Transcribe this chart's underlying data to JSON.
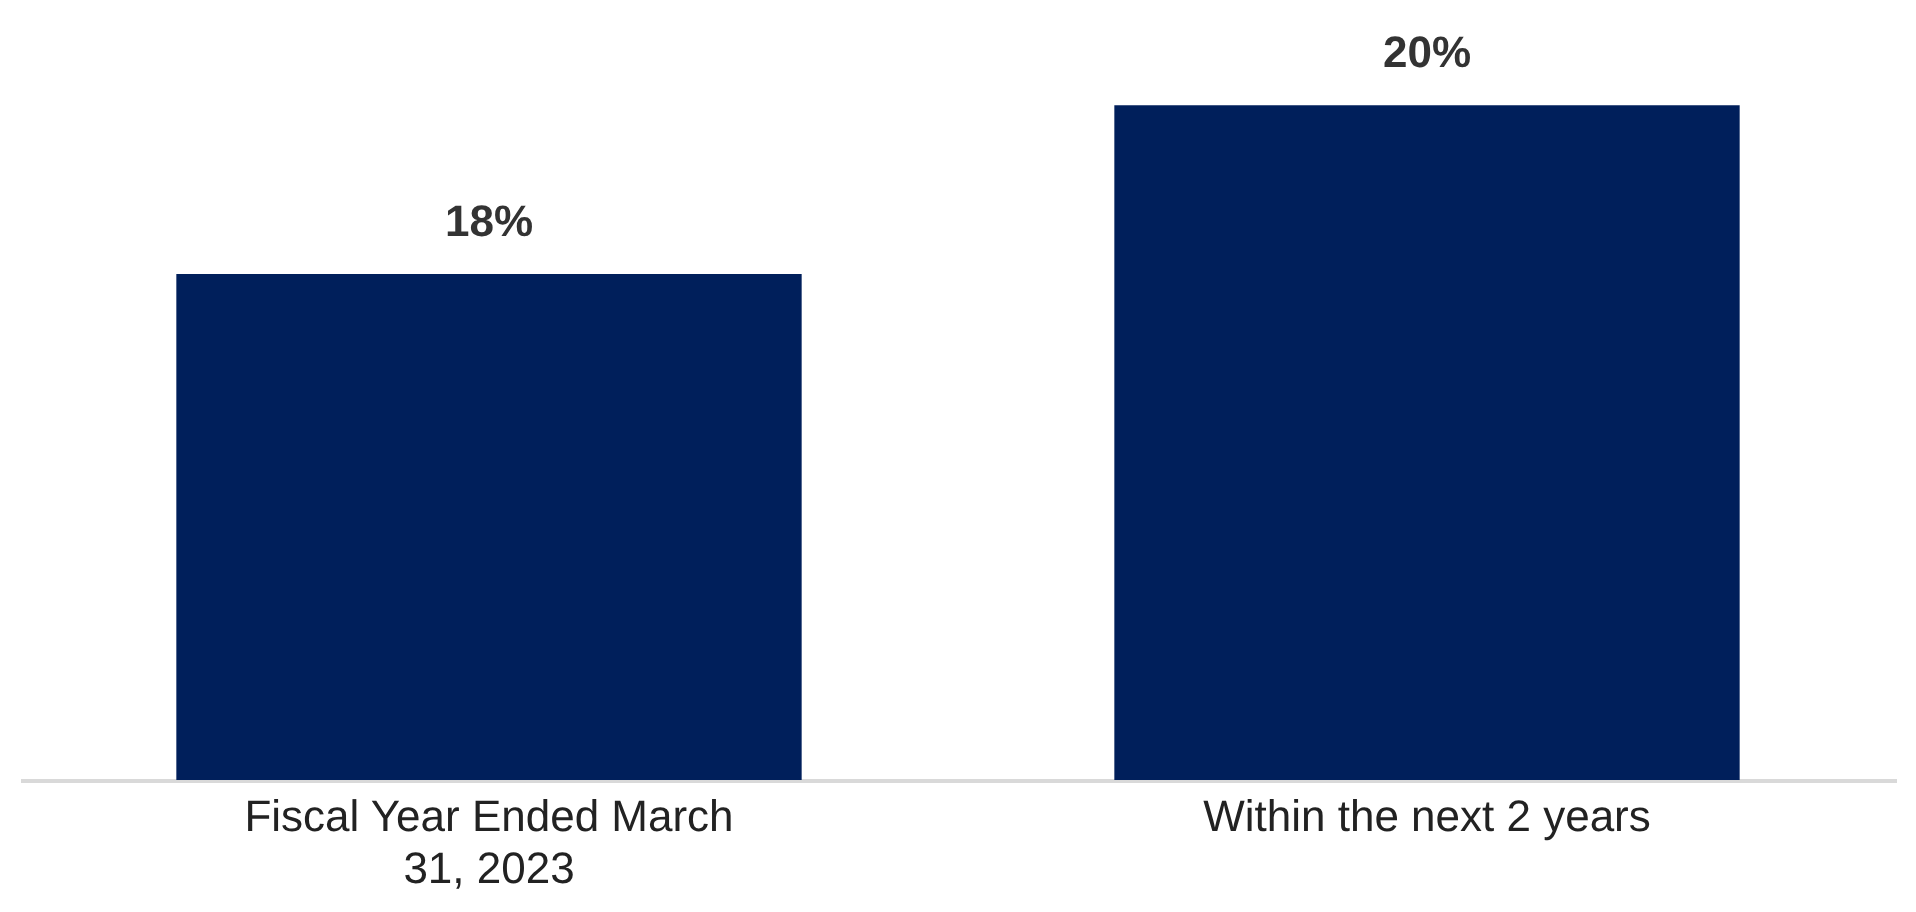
{
  "chart_data": {
    "type": "bar",
    "categories": [
      "Fiscal Year Ended March 31, 2023",
      "Within the next 2 years"
    ],
    "values": [
      18,
      20
    ],
    "value_labels": [
      "18%",
      "20%"
    ],
    "color": "#001f5b",
    "ylim": [
      12,
      21.2
    ]
  }
}
